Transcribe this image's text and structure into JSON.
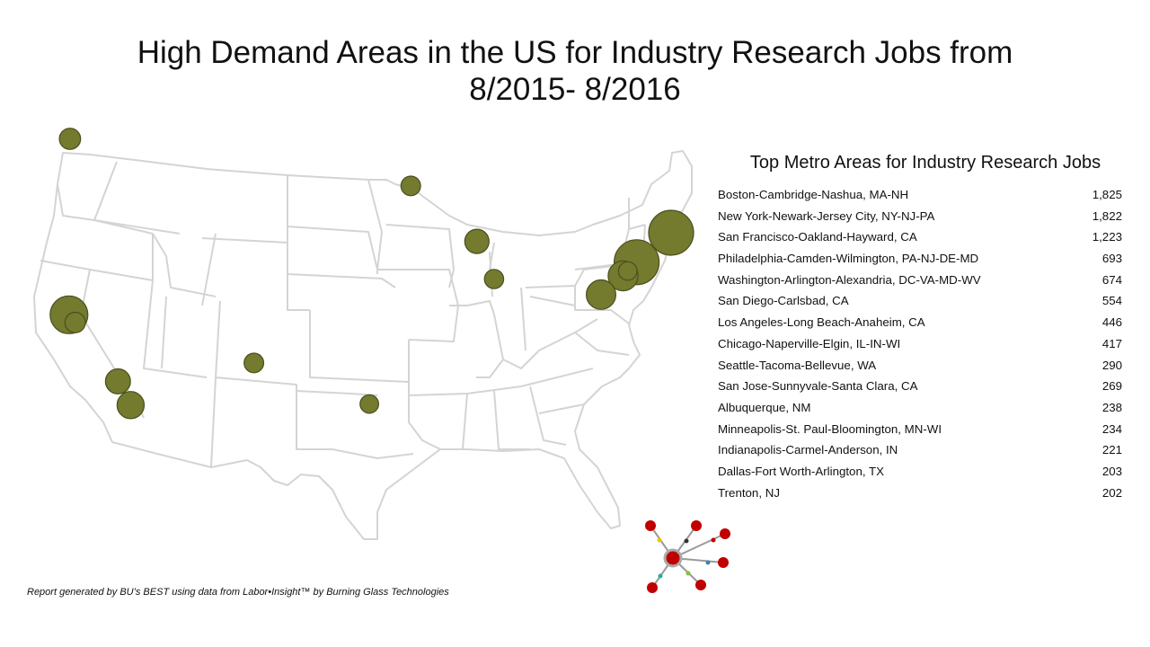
{
  "title": {
    "line1": "High Demand Areas in the US for Industry Research Jobs from",
    "line2": "8/2015- 8/2016"
  },
  "panel": {
    "title": "Top Metro Areas for Industry Research Jobs",
    "metros": [
      {
        "name": "Boston-Cambridge-Nashua, MA-NH",
        "jobs": "1,825",
        "value": 1825,
        "lon": -71.06,
        "lat": 42.36
      },
      {
        "name": "New York-Newark-Jersey City, NY-NJ-PA",
        "jobs": "1,822",
        "value": 1822,
        "lon": -74.0,
        "lat": 40.71
      },
      {
        "name": "San Francisco-Oakland-Hayward, CA",
        "jobs": "1,223",
        "value": 1223,
        "lon": -122.42,
        "lat": 37.77
      },
      {
        "name": "Philadelphia-Camden-Wilmington, PA-NJ-DE-MD",
        "jobs": "693",
        "value": 693,
        "lon": -75.16,
        "lat": 39.95
      },
      {
        "name": "Washington-Arlington-Alexandria, DC-VA-MD-WV",
        "jobs": "674",
        "value": 674,
        "lon": -77.04,
        "lat": 38.9
      },
      {
        "name": "San Diego-Carlsbad, CA",
        "jobs": "554",
        "value": 554,
        "lon": -117.16,
        "lat": 32.72
      },
      {
        "name": "Los Angeles-Long Beach-Anaheim, CA",
        "jobs": "446",
        "value": 446,
        "lon": -118.24,
        "lat": 34.05
      },
      {
        "name": "Chicago-Naperville-Elgin, IL-IN-WI",
        "jobs": "417",
        "value": 417,
        "lon": -87.63,
        "lat": 41.88
      },
      {
        "name": "Seattle-Tacoma-Bellevue, WA",
        "jobs": "290",
        "value": 290,
        "lon": -122.33,
        "lat": 47.61
      },
      {
        "name": "San Jose-Sunnyvale-Santa Clara, CA",
        "jobs": "269",
        "value": 269,
        "lon": -121.89,
        "lat": 37.34
      },
      {
        "name": "Albuquerque,  NM",
        "jobs": "238",
        "value": 238,
        "lon": -106.65,
        "lat": 35.08
      },
      {
        "name": "Minneapolis-St. Paul-Bloomington, MN-WI",
        "jobs": "234",
        "value": 234,
        "lon": -93.27,
        "lat": 44.98
      },
      {
        "name": "Indianapolis-Carmel-Anderson, IN",
        "jobs": "221",
        "value": 221,
        "lon": -86.16,
        "lat": 39.77
      },
      {
        "name": "Dallas-Fort Worth-Arlington,  TX",
        "jobs": "203",
        "value": 203,
        "lon": -96.8,
        "lat": 32.78
      },
      {
        "name": "Trenton, NJ",
        "jobs": "202",
        "value": 202,
        "lon": -74.76,
        "lat": 40.22
      }
    ]
  },
  "colors": {
    "bubble": "#747a2e",
    "bubble_stroke": "#4a4e1c",
    "state_line": "#d4d4d4",
    "logo_node": "#c00000"
  },
  "footer": "Report generated by BU’s BEST using data from Labor•Insight™ by Burning Glass Technologies",
  "logo": {
    "icon": "network-hub-logo"
  }
}
